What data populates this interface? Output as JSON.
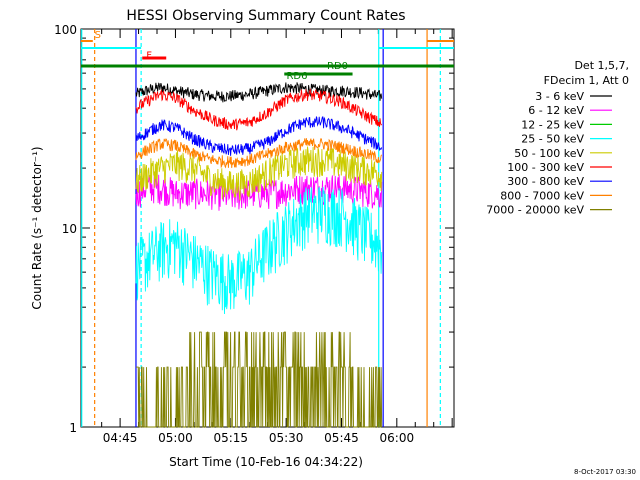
{
  "chart_data": {
    "type": "line",
    "title": "HESSI Observing Summary Count Rates",
    "xlabel": "Start Time (10-Feb-16 04:34:22)",
    "ylabel": "Count Rate (s⁻¹ detector⁻¹)",
    "y_scale": "log",
    "ylim": [
      1,
      100
    ],
    "xlim_minutes_of_day": [
      274.4,
      375.5
    ],
    "x_ticks": [
      {
        "label": "04:45",
        "minute": 285
      },
      {
        "label": "05:00",
        "minute": 300
      },
      {
        "label": "05:15",
        "minute": 315
      },
      {
        "label": "05:30",
        "minute": 330
      },
      {
        "label": "05:45",
        "minute": 345
      },
      {
        "label": "06:00",
        "minute": 360
      }
    ],
    "y_tick_labels": [
      {
        "label": "100",
        "value": 100
      },
      {
        "label": "10",
        "value": 10
      },
      {
        "label": "1",
        "value": 1
      }
    ],
    "legend_header": [
      "Det 1,5,7,",
      "FDecim 1, Att 0"
    ],
    "legend_placement": "right",
    "series": [
      {
        "name": "3 - 6 keV",
        "color": "#000000",
        "points": [
          [
            289.3,
            47
          ],
          [
            292,
            49
          ],
          [
            296,
            51
          ],
          [
            300,
            49
          ],
          [
            305,
            47
          ],
          [
            310,
            46
          ],
          [
            315,
            46
          ],
          [
            320,
            47
          ],
          [
            325,
            49
          ],
          [
            330,
            51
          ],
          [
            335,
            50
          ],
          [
            340,
            49
          ],
          [
            345,
            49
          ],
          [
            350,
            48
          ],
          [
            355,
            46
          ],
          [
            356,
            46
          ]
        ]
      },
      {
        "name": "6 - 12 keV",
        "color": "#ff00ff",
        "points": [
          [
            289.3,
            15
          ],
          [
            292,
            16
          ],
          [
            296,
            16
          ],
          [
            300,
            15
          ],
          [
            305,
            15
          ],
          [
            310,
            15
          ],
          [
            315,
            14.5
          ],
          [
            320,
            15
          ],
          [
            325,
            15
          ],
          [
            330,
            15.5
          ],
          [
            335,
            16
          ],
          [
            340,
            16
          ],
          [
            345,
            16
          ],
          [
            350,
            15.5
          ],
          [
            355,
            15
          ],
          [
            356,
            15
          ]
        ]
      },
      {
        "name": "12 - 25 keV",
        "color": "#00cc00",
        "points": []
      },
      {
        "name": "25 - 50 keV",
        "color": "#00ffff",
        "points": [
          [
            289.3,
            6.5
          ],
          [
            292,
            7
          ],
          [
            296,
            8
          ],
          [
            300,
            8.5
          ],
          [
            305,
            7
          ],
          [
            310,
            6
          ],
          [
            315,
            5.5
          ],
          [
            320,
            6
          ],
          [
            325,
            8
          ],
          [
            330,
            10
          ],
          [
            335,
            12
          ],
          [
            340,
            12.5
          ],
          [
            345,
            12
          ],
          [
            350,
            10
          ],
          [
            355,
            8.5
          ],
          [
            356,
            8
          ]
        ]
      },
      {
        "name": "50 - 100 keV",
        "color": "#cccc00",
        "points": [
          [
            289.3,
            17
          ],
          [
            292,
            18.5
          ],
          [
            296,
            20
          ],
          [
            300,
            21
          ],
          [
            305,
            20
          ],
          [
            310,
            17.5
          ],
          [
            315,
            16.5
          ],
          [
            320,
            17
          ],
          [
            325,
            19
          ],
          [
            330,
            21
          ],
          [
            335,
            22
          ],
          [
            340,
            22
          ],
          [
            345,
            21
          ],
          [
            350,
            20
          ],
          [
            355,
            19
          ],
          [
            356,
            18.5
          ]
        ]
      },
      {
        "name": "100 - 300 keV",
        "color": "#ff0000",
        "points": [
          [
            289.3,
            40
          ],
          [
            292,
            43
          ],
          [
            296,
            47
          ],
          [
            300,
            45
          ],
          [
            305,
            39
          ],
          [
            310,
            35
          ],
          [
            315,
            33
          ],
          [
            320,
            34
          ],
          [
            325,
            38
          ],
          [
            330,
            44
          ],
          [
            335,
            47
          ],
          [
            340,
            46
          ],
          [
            345,
            43
          ],
          [
            350,
            38
          ],
          [
            355,
            34
          ],
          [
            356,
            33
          ]
        ]
      },
      {
        "name": "300 - 800 keV",
        "color": "#0000ff",
        "points": [
          [
            289.3,
            28
          ],
          [
            292,
            30
          ],
          [
            296,
            33
          ],
          [
            300,
            32
          ],
          [
            305,
            28
          ],
          [
            310,
            25.5
          ],
          [
            315,
            24.5
          ],
          [
            320,
            25
          ],
          [
            325,
            27
          ],
          [
            330,
            31
          ],
          [
            335,
            34
          ],
          [
            340,
            34
          ],
          [
            345,
            32
          ],
          [
            350,
            29
          ],
          [
            355,
            26
          ],
          [
            356,
            25
          ]
        ]
      },
      {
        "name": "800 - 7000 keV",
        "color": "#ff8000",
        "points": [
          [
            289.3,
            23
          ],
          [
            292,
            24.5
          ],
          [
            296,
            26.5
          ],
          [
            300,
            26
          ],
          [
            305,
            23.5
          ],
          [
            310,
            22
          ],
          [
            315,
            21.5
          ],
          [
            320,
            22
          ],
          [
            325,
            23.5
          ],
          [
            330,
            25.5
          ],
          [
            335,
            26.5
          ],
          [
            340,
            26.5
          ],
          [
            345,
            25.5
          ],
          [
            350,
            24
          ],
          [
            355,
            22.5
          ],
          [
            356,
            22
          ]
        ]
      },
      {
        "name": "7000 - 20000 keV",
        "color": "#808000",
        "points": [
          [
            289.3,
            1.5
          ],
          [
            293,
            1.6
          ],
          [
            298,
            1.7
          ],
          [
            303,
            1.6
          ],
          [
            308,
            1.6
          ],
          [
            313,
            1.4
          ],
          [
            318,
            1.3
          ],
          [
            323,
            1.5
          ],
          [
            328,
            1.8
          ],
          [
            333,
            2.1
          ],
          [
            338,
            2.2
          ],
          [
            343,
            2.1
          ],
          [
            348,
            1.9
          ],
          [
            353,
            1.6
          ],
          [
            356,
            1.5
          ]
        ]
      }
    ],
    "annotations": [
      {
        "text": "S",
        "color": "#ff8000",
        "x_minute": 277,
        "y_value": 90,
        "x_end_minute": 277
      },
      {
        "text": "F",
        "color": "#ff0000",
        "x_minute": 291,
        "y_value": 71,
        "x_end_minute": 300
      },
      {
        "text": "RD0",
        "color": "#008000",
        "x_minute": 340,
        "y_value": 63,
        "x_end_minute": 352
      },
      {
        "text": "RD6",
        "color": "#008000",
        "x_minute": 329,
        "y_value": 56,
        "x_end_minute": 345
      }
    ],
    "footer_date": "8-Oct-2017 03:30"
  }
}
